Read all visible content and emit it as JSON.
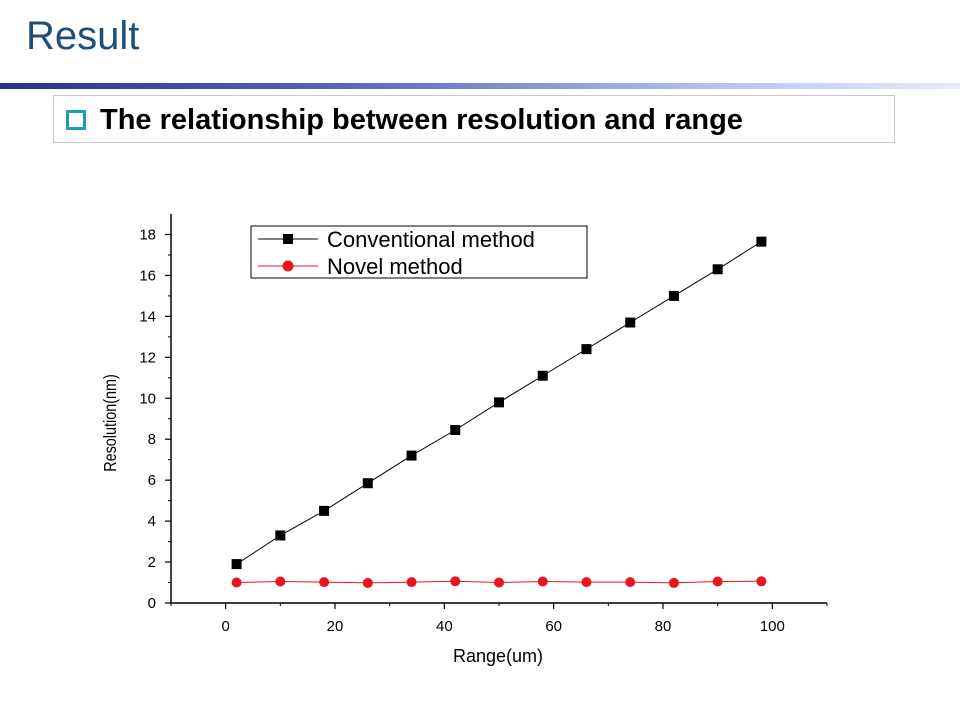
{
  "slide": {
    "title": "Result",
    "heading": "The relationship between resolution and range"
  },
  "colors": {
    "title": "#1f4e79",
    "bullet": "#1a9fb0",
    "series_conventional": "#000000",
    "series_novel": "#e8141e"
  },
  "chart_data": {
    "type": "line",
    "xlabel": "Range(um)",
    "ylabel": "Resolution(nm)",
    "xlim": [
      -10,
      110
    ],
    "ylim": [
      0,
      19
    ],
    "x_ticks": [
      0,
      20,
      40,
      60,
      80,
      100
    ],
    "y_ticks": [
      0,
      2,
      4,
      6,
      8,
      10,
      12,
      14,
      16,
      18
    ],
    "x_tick_labels": [
      "0",
      "20",
      "40",
      "60",
      "80",
      "100"
    ],
    "y_tick_labels": [
      "0",
      "2",
      "4",
      "6",
      "8",
      "10",
      "12",
      "14",
      "16",
      "18"
    ],
    "grid": false,
    "legend_position": "top",
    "x": [
      2,
      10,
      18,
      26,
      34,
      42,
      50,
      58,
      66,
      74,
      82,
      90,
      98
    ],
    "series": [
      {
        "name": "Conventional method",
        "marker": "square",
        "values": [
          1.9,
          3.3,
          4.5,
          5.85,
          7.2,
          8.45,
          9.8,
          11.1,
          12.4,
          13.7,
          15.0,
          16.3,
          17.65
        ]
      },
      {
        "name": "Novel method",
        "marker": "circle",
        "values": [
          1.0,
          1.05,
          1.02,
          0.98,
          1.02,
          1.06,
          1.0,
          1.05,
          1.02,
          1.02,
          0.98,
          1.05,
          1.06
        ]
      }
    ]
  }
}
